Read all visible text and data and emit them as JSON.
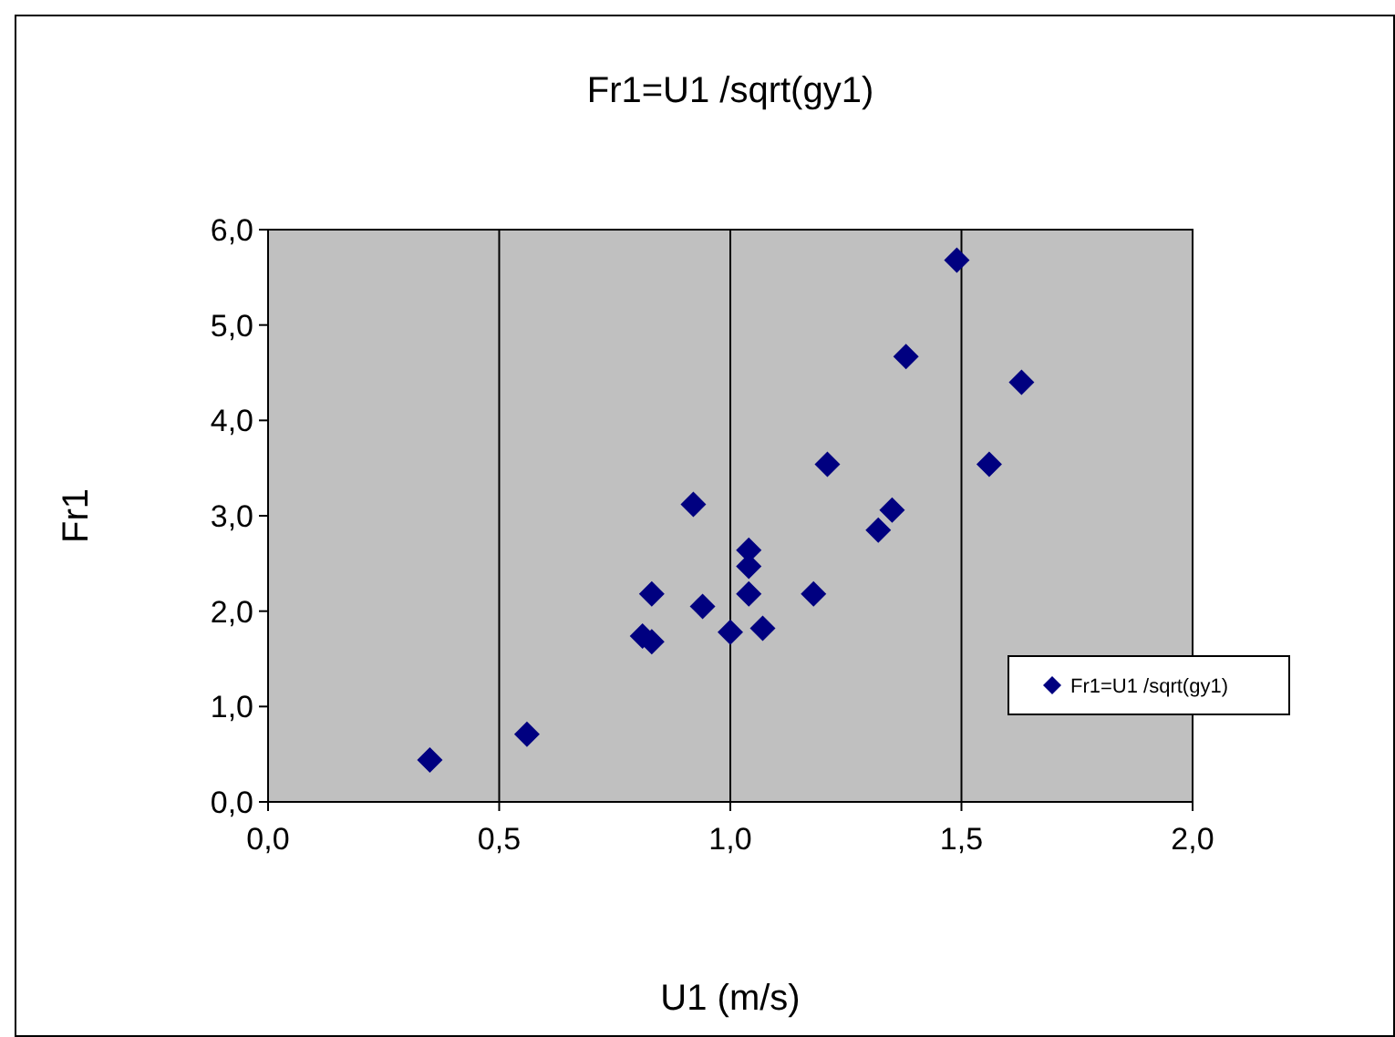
{
  "chart_data": {
    "type": "scatter",
    "title": "Fr1=U1 /sqrt(gy1)",
    "xlabel": "U1 (m/s)",
    "ylabel": "Fr1",
    "x": [
      0.35,
      0.56,
      0.81,
      0.83,
      0.83,
      0.92,
      0.94,
      1.0,
      1.04,
      1.04,
      1.04,
      1.07,
      1.18,
      1.21,
      1.32,
      1.35,
      1.38,
      1.49,
      1.56,
      1.63
    ],
    "series": [
      {
        "name": "Fr1=U1 /sqrt(gy1)",
        "color": "#000080",
        "values": [
          0.44,
          0.71,
          1.74,
          1.68,
          2.18,
          3.12,
          2.05,
          1.78,
          2.64,
          2.47,
          2.18,
          1.82,
          2.18,
          3.54,
          2.85,
          3.06,
          4.67,
          5.68,
          3.54,
          4.4
        ]
      }
    ],
    "xlim": [
      0,
      2
    ],
    "ylim": [
      0,
      6
    ],
    "xticks": [
      {
        "value": 0,
        "label": "0,0"
      },
      {
        "value": 0.5,
        "label": "0,5"
      },
      {
        "value": 1,
        "label": "1,0"
      },
      {
        "value": 1.5,
        "label": "1,5"
      },
      {
        "value": 2,
        "label": "2,0"
      }
    ],
    "yticks": [
      {
        "value": 0,
        "label": "0,0"
      },
      {
        "value": 1,
        "label": "1,0"
      },
      {
        "value": 2,
        "label": "2,0"
      },
      {
        "value": 3,
        "label": "3,0"
      },
      {
        "value": 4,
        "label": "4,0"
      },
      {
        "value": 5,
        "label": "5,0"
      },
      {
        "value": 6,
        "label": "6,0"
      }
    ],
    "grid": "x",
    "legend": "right",
    "marker": "diamond"
  }
}
